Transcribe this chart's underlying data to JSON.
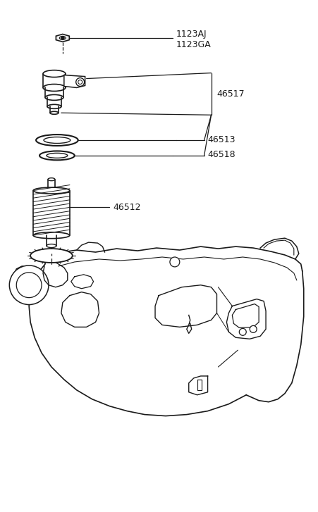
{
  "bg_color": "#ffffff",
  "line_color": "#1a1a1a",
  "fig_width": 4.51,
  "fig_height": 7.27,
  "dpi": 100
}
